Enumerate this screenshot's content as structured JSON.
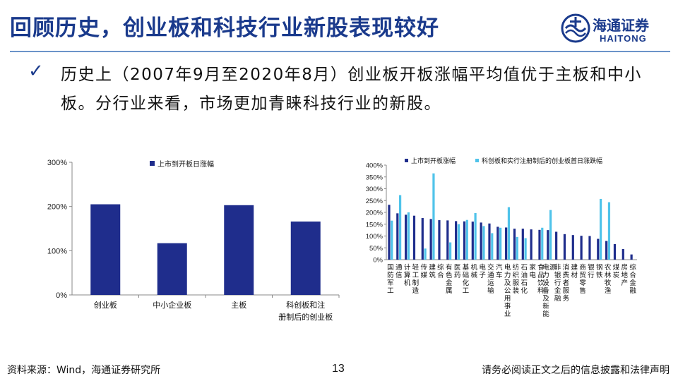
{
  "title": "回顾历史，创业板和科技行业新股表现较好",
  "logo": {
    "cn": "海通证券",
    "en": "HAITONG"
  },
  "bullet_text": "历史上（2007年9月至2020年8月）创业板开板涨幅平均值优于主板和中小板。分行业来看，市场更加青睐科技行业的新股。",
  "footer": {
    "source": "资料来源：Wind，海通证券研究所",
    "page": "13",
    "disclaimer": "请务必阅读正文之后的信息披露和法律声明"
  },
  "colors": {
    "title": "#1a3a8c",
    "series_primary": "#1f2d8c",
    "series_secondary": "#4fc3ea"
  },
  "chart_data": [
    {
      "type": "bar",
      "categories": [
        "创业板",
        "中小企业板",
        "主板",
        "科创板和注册制后的创业板"
      ],
      "series": [
        {
          "name": "上市到开板日涨幅",
          "values": [
            205,
            117,
            203,
            166
          ]
        }
      ],
      "ylim": [
        0,
        300
      ],
      "yticks": [
        "0%",
        "100%",
        "200%",
        "300%"
      ],
      "grid": false,
      "legend": "top-left"
    },
    {
      "type": "bar",
      "categories": [
        "国防军工",
        "通信",
        "计算机",
        "轻工制造",
        "传媒",
        "建筑",
        "综合",
        "有色金属",
        "医药",
        "基础化工",
        "机械",
        "电子",
        "交通运输",
        "汽车",
        "电力及公用事业",
        "纺织服装",
        "石油石化",
        "家电",
        "食品饮料",
        "电力设备及新能源",
        "非银行金融",
        "消费者服务",
        "建材",
        "商贸零售",
        "银行",
        "钢铁",
        "农林牧渔",
        "煤炭",
        "房地产",
        "综合金融"
      ],
      "series": [
        {
          "name": "上市到开板涨幅",
          "values": [
            232,
            196,
            190,
            186,
            176,
            172,
            167,
            166,
            163,
            162,
            161,
            157,
            153,
            139,
            136,
            131,
            131,
            128,
            126,
            125,
            118,
            108,
            104,
            101,
            100,
            88,
            79,
            66,
            45,
            22
          ]
        },
        {
          "name": "科创板和实行注册制后的创业板首日涨跌幅",
          "values": [
            165,
            273,
            200,
            null,
            47,
            365,
            null,
            73,
            150,
            168,
            197,
            142,
            112,
            135,
            222,
            96,
            91,
            null,
            135,
            210,
            null,
            null,
            null,
            null,
            null,
            257,
            243,
            null,
            null,
            null
          ]
        }
      ],
      "ylim": [
        0,
        400
      ],
      "yticks": [
        "0%",
        "50%",
        "100%",
        "150%",
        "200%",
        "250%",
        "300%",
        "350%",
        "400%"
      ],
      "grid": false,
      "legend": "top"
    }
  ]
}
